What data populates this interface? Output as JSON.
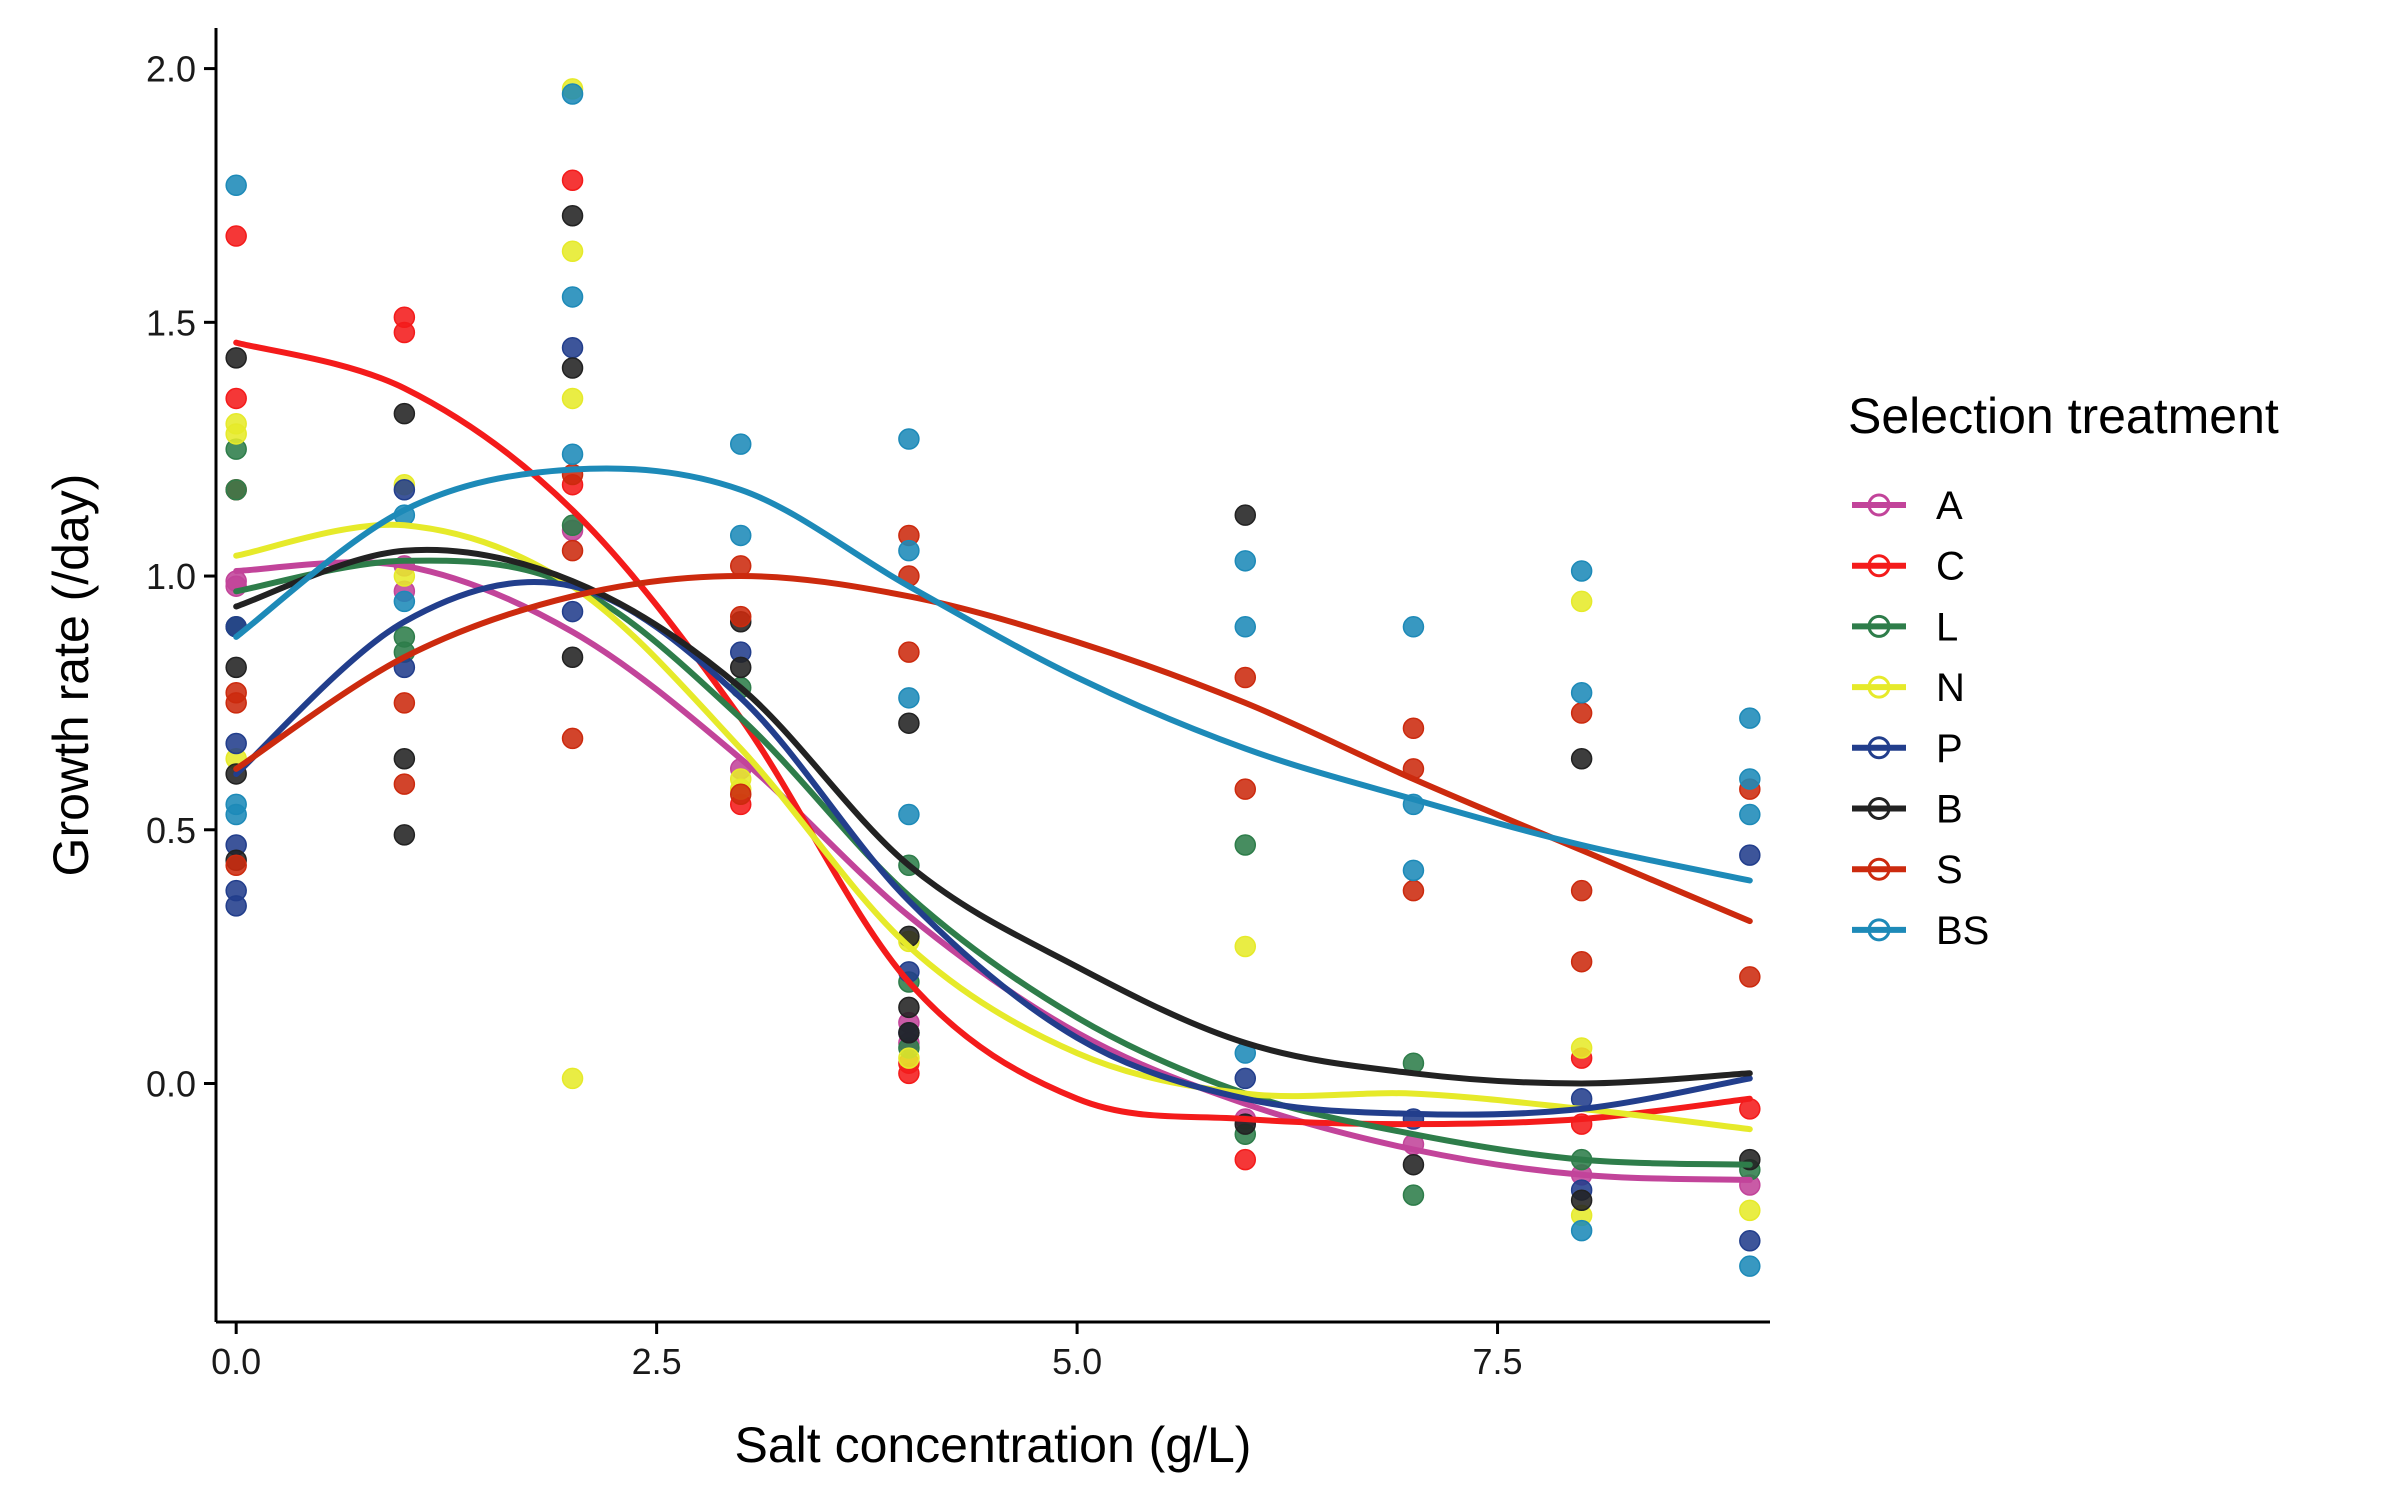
{
  "chart_data": {
    "type": "scatter",
    "xlabel": "Salt concentration (g/L)",
    "ylabel": "Growth rate (/day)",
    "xlim": [
      -0.12,
      9.12
    ],
    "ylim": [
      -0.47,
      2.08
    ],
    "x_ticks": [
      0.0,
      2.5,
      5.0,
      7.5
    ],
    "x_tick_labels": [
      "0.0",
      "2.5",
      "5.0",
      "7.5"
    ],
    "y_ticks": [
      0.0,
      0.5,
      1.0,
      1.5,
      2.0
    ],
    "y_tick_labels": [
      "0.0",
      "0.5",
      "1.0",
      "1.5",
      "2.0"
    ],
    "grid": false,
    "legend": {
      "title": "Selection treatment",
      "placement": "right"
    },
    "series": [
      {
        "name": "A",
        "color": "#c2449a",
        "points": [
          [
            0,
            0.99
          ],
          [
            0,
            0.98
          ],
          [
            1,
            1.02
          ],
          [
            1,
            0.97
          ],
          [
            2,
            1.09
          ],
          [
            3,
            0.62
          ],
          [
            4,
            0.08
          ],
          [
            4,
            0.12
          ],
          [
            6,
            -0.07
          ],
          [
            7,
            -0.12
          ],
          [
            8,
            -0.18
          ],
          [
            9,
            -0.2
          ]
        ],
        "fit": [
          [
            0,
            1.01
          ],
          [
            1,
            1.02
          ],
          [
            2,
            0.89
          ],
          [
            3,
            0.64
          ],
          [
            4,
            0.33
          ],
          [
            5,
            0.1
          ],
          [
            6,
            -0.04
          ],
          [
            7,
            -0.13
          ],
          [
            8,
            -0.18
          ],
          [
            9,
            -0.19
          ]
        ]
      },
      {
        "name": "C",
        "color": "#f41b1b",
        "points": [
          [
            0,
            1.67
          ],
          [
            0,
            1.35
          ],
          [
            0,
            1.17
          ],
          [
            1,
            1.51
          ],
          [
            1,
            1.48
          ],
          [
            2,
            1.78
          ],
          [
            2,
            1.18
          ],
          [
            3,
            0.55
          ],
          [
            4,
            0.02
          ],
          [
            4,
            0.04
          ],
          [
            6,
            -0.15
          ],
          [
            8,
            0.05
          ],
          [
            8,
            -0.08
          ],
          [
            9,
            -0.05
          ]
        ],
        "fit": [
          [
            0,
            1.46
          ],
          [
            1,
            1.37
          ],
          [
            2,
            1.13
          ],
          [
            3,
            0.72
          ],
          [
            4,
            0.2
          ],
          [
            5,
            -0.03
          ],
          [
            6,
            -0.07
          ],
          [
            7,
            -0.08
          ],
          [
            8,
            -0.07
          ],
          [
            9,
            -0.03
          ]
        ]
      },
      {
        "name": "L",
        "color": "#2e7d4a",
        "points": [
          [
            0,
            1.25
          ],
          [
            0,
            1.17
          ],
          [
            0,
            0.9
          ],
          [
            1,
            0.88
          ],
          [
            1,
            0.85
          ],
          [
            2,
            1.1
          ],
          [
            3,
            0.78
          ],
          [
            4,
            0.43
          ],
          [
            4,
            0.2
          ],
          [
            4,
            0.07
          ],
          [
            6,
            0.47
          ],
          [
            6,
            -0.1
          ],
          [
            7,
            0.04
          ],
          [
            7,
            -0.22
          ],
          [
            8,
            -0.15
          ],
          [
            9,
            -0.17
          ]
        ],
        "fit": [
          [
            0,
            0.97
          ],
          [
            1,
            1.03
          ],
          [
            2,
            0.98
          ],
          [
            3,
            0.72
          ],
          [
            4,
            0.37
          ],
          [
            5,
            0.13
          ],
          [
            6,
            -0.02
          ],
          [
            7,
            -0.1
          ],
          [
            8,
            -0.15
          ],
          [
            9,
            -0.16
          ]
        ]
      },
      {
        "name": "N",
        "color": "#e6ea2a",
        "points": [
          [
            0,
            1.3
          ],
          [
            0,
            1.28
          ],
          [
            0,
            0.64
          ],
          [
            1,
            1.18
          ],
          [
            1,
            1.0
          ],
          [
            2,
            1.96
          ],
          [
            2,
            1.64
          ],
          [
            2,
            1.35
          ],
          [
            2,
            0.01
          ],
          [
            3,
            0.58
          ],
          [
            3,
            0.6
          ],
          [
            4,
            0.28
          ],
          [
            4,
            0.05
          ],
          [
            6,
            0.27
          ],
          [
            8,
            0.95
          ],
          [
            8,
            0.07
          ],
          [
            8,
            -0.26
          ],
          [
            9,
            -0.25
          ]
        ],
        "fit": [
          [
            0,
            1.04
          ],
          [
            1,
            1.1
          ],
          [
            2,
            0.98
          ],
          [
            3,
            0.66
          ],
          [
            4,
            0.27
          ],
          [
            5,
            0.06
          ],
          [
            6,
            -0.02
          ],
          [
            7,
            -0.02
          ],
          [
            8,
            -0.05
          ],
          [
            9,
            -0.09
          ]
        ]
      },
      {
        "name": "P",
        "color": "#223e8c",
        "points": [
          [
            0,
            0.9
          ],
          [
            0,
            0.67
          ],
          [
            0,
            0.47
          ],
          [
            0,
            0.38
          ],
          [
            0,
            0.35
          ],
          [
            1,
            1.17
          ],
          [
            1,
            0.82
          ],
          [
            2,
            1.45
          ],
          [
            2,
            0.93
          ],
          [
            3,
            0.85
          ],
          [
            4,
            0.22
          ],
          [
            4,
            0.1
          ],
          [
            6,
            0.01
          ],
          [
            7,
            -0.07
          ],
          [
            8,
            -0.03
          ],
          [
            8,
            -0.21
          ],
          [
            9,
            0.45
          ],
          [
            9,
            -0.31
          ]
        ],
        "fit": [
          [
            0,
            0.61
          ],
          [
            1,
            0.91
          ],
          [
            2,
            0.98
          ],
          [
            3,
            0.76
          ],
          [
            4,
            0.36
          ],
          [
            5,
            0.09
          ],
          [
            6,
            -0.03
          ],
          [
            7,
            -0.06
          ],
          [
            8,
            -0.05
          ],
          [
            9,
            0.01
          ]
        ]
      },
      {
        "name": "B",
        "color": "#222222",
        "points": [
          [
            0,
            1.43
          ],
          [
            0,
            0.82
          ],
          [
            0,
            0.61
          ],
          [
            0,
            0.44
          ],
          [
            1,
            1.32
          ],
          [
            1,
            0.64
          ],
          [
            1,
            0.49
          ],
          [
            2,
            1.71
          ],
          [
            2,
            1.41
          ],
          [
            2,
            0.84
          ],
          [
            3,
            0.91
          ],
          [
            3,
            0.82
          ],
          [
            4,
            0.71
          ],
          [
            4,
            0.29
          ],
          [
            4,
            0.15
          ],
          [
            4,
            0.1
          ],
          [
            6,
            1.12
          ],
          [
            6,
            -0.08
          ],
          [
            7,
            -0.16
          ],
          [
            8,
            0.64
          ],
          [
            8,
            -0.23
          ],
          [
            9,
            -0.15
          ]
        ],
        "fit": [
          [
            0,
            0.94
          ],
          [
            1,
            1.05
          ],
          [
            2,
            0.99
          ],
          [
            3,
            0.78
          ],
          [
            4,
            0.43
          ],
          [
            5,
            0.23
          ],
          [
            6,
            0.08
          ],
          [
            7,
            0.02
          ],
          [
            8,
            0.0
          ],
          [
            9,
            0.02
          ]
        ]
      },
      {
        "name": "S",
        "color": "#cc2a0e",
        "points": [
          [
            0,
            0.77
          ],
          [
            0,
            0.75
          ],
          [
            0,
            0.43
          ],
          [
            1,
            0.75
          ],
          [
            1,
            0.59
          ],
          [
            2,
            1.2
          ],
          [
            2,
            1.05
          ],
          [
            2,
            0.68
          ],
          [
            3,
            0.92
          ],
          [
            3,
            0.57
          ],
          [
            3,
            1.02
          ],
          [
            4,
            1.08
          ],
          [
            4,
            1.0
          ],
          [
            4,
            0.85
          ],
          [
            6,
            0.8
          ],
          [
            6,
            0.58
          ],
          [
            7,
            0.7
          ],
          [
            7,
            0.62
          ],
          [
            7,
            0.38
          ],
          [
            8,
            0.73
          ],
          [
            8,
            0.38
          ],
          [
            8,
            0.24
          ],
          [
            9,
            0.58
          ],
          [
            9,
            0.21
          ]
        ],
        "fit": [
          [
            0,
            0.62
          ],
          [
            1,
            0.84
          ],
          [
            2,
            0.96
          ],
          [
            3,
            1.0
          ],
          [
            4,
            0.96
          ],
          [
            5,
            0.87
          ],
          [
            6,
            0.75
          ],
          [
            7,
            0.6
          ],
          [
            8,
            0.46
          ],
          [
            9,
            0.32
          ]
        ]
      },
      {
        "name": "BS",
        "color": "#1d8ab8",
        "points": [
          [
            0,
            1.77
          ],
          [
            0,
            0.55
          ],
          [
            0,
            0.53
          ],
          [
            1,
            1.12
          ],
          [
            1,
            0.95
          ],
          [
            2,
            1.95
          ],
          [
            2,
            1.55
          ],
          [
            2,
            1.24
          ],
          [
            3,
            1.26
          ],
          [
            3,
            1.08
          ],
          [
            4,
            1.27
          ],
          [
            4,
            1.05
          ],
          [
            4,
            0.76
          ],
          [
            4,
            0.53
          ],
          [
            6,
            1.03
          ],
          [
            6,
            0.9
          ],
          [
            6,
            0.06
          ],
          [
            7,
            0.9
          ],
          [
            7,
            0.42
          ],
          [
            7,
            0.55
          ],
          [
            8,
            1.01
          ],
          [
            8,
            0.77
          ],
          [
            8,
            -0.29
          ],
          [
            9,
            0.72
          ],
          [
            9,
            0.6
          ],
          [
            9,
            0.53
          ],
          [
            9,
            -0.36
          ]
        ],
        "fit": [
          [
            0,
            0.88
          ],
          [
            1,
            1.13
          ],
          [
            2,
            1.21
          ],
          [
            3,
            1.17
          ],
          [
            4,
            0.98
          ],
          [
            5,
            0.8
          ],
          [
            6,
            0.66
          ],
          [
            7,
            0.56
          ],
          [
            8,
            0.47
          ],
          [
            9,
            0.4
          ]
        ]
      }
    ]
  }
}
